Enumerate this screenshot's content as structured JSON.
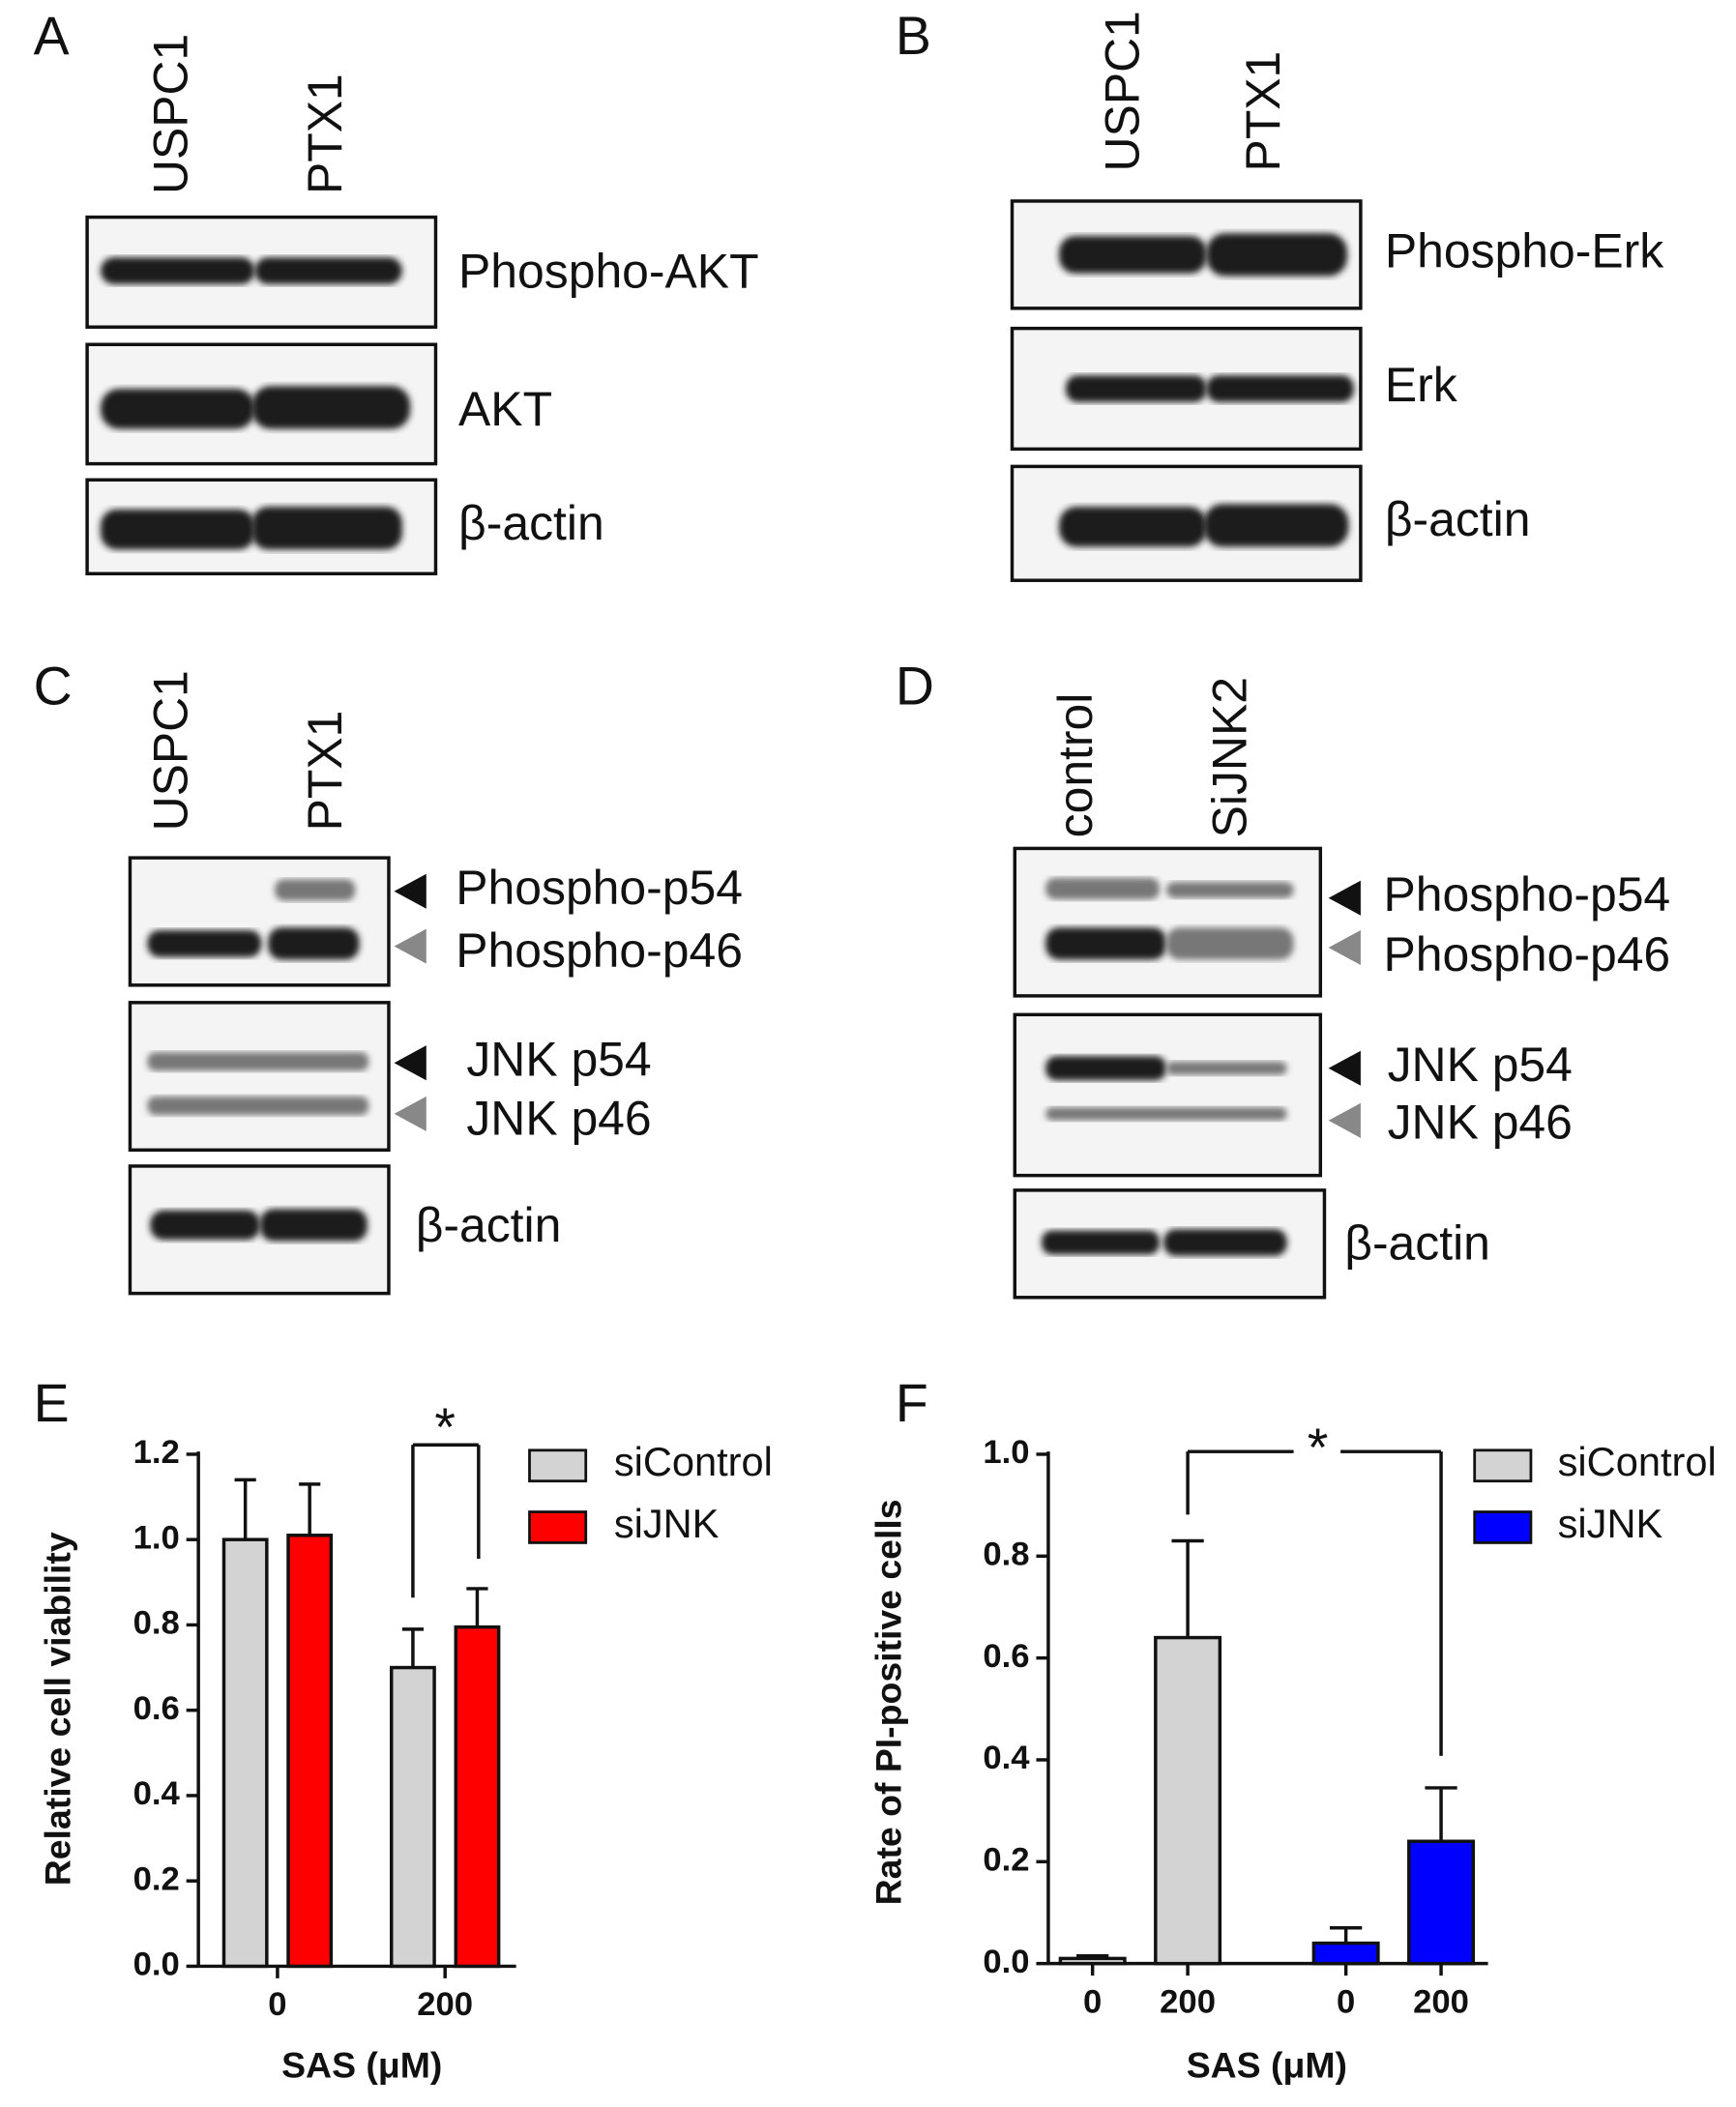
{
  "blots": [
    {
      "letter": "A",
      "lanes": [
        "USPC1",
        "PTX1"
      ],
      "bands": [
        "Phospho-AKT",
        "AKT",
        "β-actin"
      ]
    },
    {
      "letter": "B",
      "lanes": [
        "USPC1",
        "PTX1"
      ],
      "bands": [
        "Phospho-Erk",
        "Erk",
        "β-actin"
      ]
    },
    {
      "letter": "C",
      "lanes": [
        "USPC1",
        "PTX1"
      ],
      "bands": [
        "Phospho-p54",
        "Phospho-p46",
        "JNK p54",
        "JNK p46",
        "β-actin"
      ]
    },
    {
      "letter": "D",
      "lanes": [
        "control",
        "SiJNK2"
      ],
      "bands": [
        "Phospho-p54",
        "Phospho-p46",
        "JNK p54",
        "JNK p46",
        "β-actin"
      ]
    }
  ],
  "chart_data": [
    {
      "type": "bar",
      "panel": "E",
      "ylabel": "Relative cell viability",
      "xlabel": "SAS (μM)",
      "categories": [
        "0",
        "200"
      ],
      "series": [
        {
          "name": "siControl",
          "color": "#d3d3d3",
          "values": [
            1.0,
            0.7
          ],
          "errors": [
            0.14,
            0.09
          ]
        },
        {
          "name": "siJNK",
          "color": "#ff0000",
          "values": [
            1.01,
            0.795
          ],
          "errors": [
            0.12,
            0.09
          ]
        }
      ],
      "ylim": [
        0,
        1.2
      ],
      "yticks": [
        {
          "value": 0,
          "label": "0.0"
        },
        {
          "value": 0.2,
          "label": "0.2"
        },
        {
          "value": 0.4,
          "label": "0.4"
        },
        {
          "value": 0.6,
          "label": "0.6"
        },
        {
          "value": 0.8,
          "label": "0.8"
        },
        {
          "value": 1.0,
          "label": "1.0"
        },
        {
          "value": 1.2,
          "label": "1.2"
        }
      ],
      "annotation": "*",
      "legend": "upper right"
    },
    {
      "type": "bar",
      "panel": "F",
      "ylabel": "Rate of  PI-positive cells",
      "xlabel": "SAS (μM)",
      "categories": [
        "0",
        "200",
        "0",
        "200"
      ],
      "series": [
        {
          "name": "siControl",
          "color": "#d3d3d3",
          "values": [
            0.01,
            0.64,
            null,
            null
          ],
          "errors": [
            0.005,
            0.19,
            null,
            null
          ]
        },
        {
          "name": "siJNK",
          "color": "#0000ff",
          "values": [
            null,
            null,
            0.04,
            0.24
          ],
          "errors": [
            null,
            null,
            0.03,
            0.105
          ]
        }
      ],
      "ylim": [
        0,
        1.0
      ],
      "yticks": [
        {
          "value": 0,
          "label": "0.0"
        },
        {
          "value": 0.2,
          "label": "0.2"
        },
        {
          "value": 0.4,
          "label": "0.4"
        },
        {
          "value": 0.6,
          "label": "0.6"
        },
        {
          "value": 0.8,
          "label": "0.8"
        },
        {
          "value": 1.0,
          "label": "1.0"
        }
      ],
      "annotation": "*",
      "legend": "upper right"
    }
  ]
}
